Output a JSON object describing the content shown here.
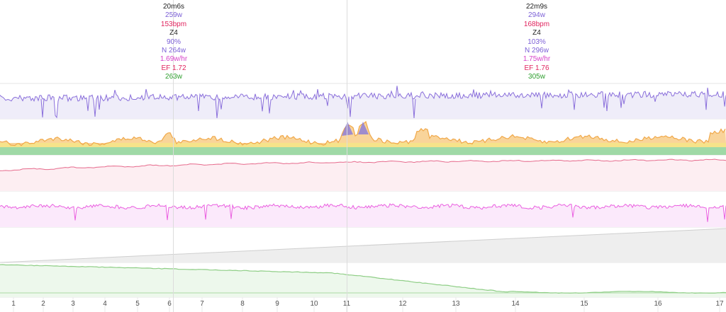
{
  "chart_data": {
    "type": "line",
    "title": "",
    "x_ticks": [
      "1",
      "2",
      "3",
      "4",
      "5",
      "6",
      "7",
      "8",
      "9",
      "10",
      "11",
      "12",
      "13",
      "14",
      "15",
      "16",
      "17"
    ],
    "markers": [
      {
        "time": "20m6s",
        "power": "259w",
        "heart_rate": "153bpm",
        "zone": "Z4",
        "intensity": "90%",
        "normalized_power": "N 264w",
        "decoupling": "1.69w/hr",
        "efficiency_factor": "EF 1.72",
        "green_power": "263w"
      },
      {
        "time": "22m9s",
        "power": "294w",
        "heart_rate": "168bpm",
        "zone": "Z4",
        "intensity": "103%",
        "normalized_power": "N 296w",
        "decoupling": "1.75w/hr",
        "efficiency_factor": "EF 1.76",
        "green_power": "305w"
      }
    ],
    "series": [
      {
        "key": "power",
        "color": "#8a6fdb",
        "fill": "#efedf9"
      },
      {
        "key": "zone_power",
        "color": "#f0a84a",
        "fill": "#f9d49a"
      },
      {
        "key": "heart_rate",
        "color": "#e66a8c",
        "fill": "#fdeef2"
      },
      {
        "key": "cadence",
        "color": "#ea5ee0",
        "fill": "#fbe9fb"
      },
      {
        "key": "distance",
        "color": "#cfcfcf",
        "fill": "#eeeeee"
      },
      {
        "key": "wbal",
        "color": "#8fce86",
        "fill": "#edf8ec"
      }
    ]
  },
  "colors": {
    "time": "#222222",
    "power": "#7b5fd6",
    "heart_rate": "#e0245e",
    "zone": "#222222",
    "intensity": "#7b5fd6",
    "normalized_power": "#7b5fd6",
    "decoupling": "#d63fc8",
    "efficiency_factor": "#e0245e",
    "green_power": "#2e9e2e"
  }
}
